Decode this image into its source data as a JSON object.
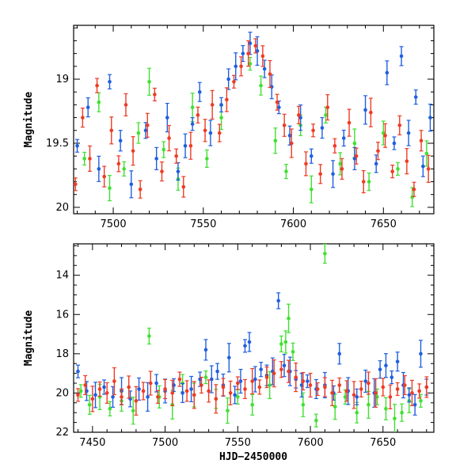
{
  "colors": {
    "blue": "#1f5fe0",
    "red": "#ee3b24",
    "green": "#3fe030",
    "frame": "#000000"
  },
  "chart_data": [
    {
      "type": "scatter",
      "title": "",
      "xlabel": "",
      "ylabel": "Magnitude",
      "xlim": [
        7478,
        7678
      ],
      "ylim": [
        20.05,
        18.58
      ],
      "y_inverted": true,
      "xticks": [
        7500,
        7550,
        7600,
        7650
      ],
      "yticks": [
        19,
        19.5,
        20
      ],
      "error_bars": true,
      "grid": false,
      "legend": "none",
      "series": [
        {
          "color": "#3fe030",
          "x": [
            7484,
            7492,
            7498,
            7506,
            7514,
            7520,
            7528,
            7536,
            7544,
            7552,
            7560,
            7576,
            7582,
            7590,
            7596,
            7604,
            7610,
            7618,
            7626,
            7634,
            7642,
            7650,
            7658,
            7666,
            7674
          ],
          "y": [
            19.62,
            19.18,
            19.85,
            19.7,
            19.42,
            19.02,
            19.55,
            19.78,
            19.22,
            19.62,
            19.3,
            18.88,
            19.05,
            19.48,
            19.72,
            19.36,
            19.86,
            19.28,
            19.66,
            19.5,
            19.8,
            19.42,
            19.7,
            19.92,
            19.58
          ]
        },
        {
          "color": "#1f5fe0",
          "x": [
            7480,
            7486,
            7492,
            7498,
            7504,
            7510,
            7518,
            7524,
            7530,
            7536,
            7540,
            7544,
            7548,
            7554,
            7560,
            7564,
            7568,
            7572,
            7576,
            7580,
            7584,
            7588,
            7592,
            7598,
            7604,
            7610,
            7616,
            7622,
            7628,
            7634,
            7640,
            7646,
            7652,
            7656,
            7660,
            7664,
            7668,
            7672,
            7676
          ],
          "y": [
            19.52,
            19.22,
            19.7,
            19.02,
            19.48,
            19.82,
            19.4,
            19.62,
            19.3,
            19.72,
            19.52,
            19.35,
            19.1,
            19.42,
            19.2,
            19.0,
            18.9,
            18.8,
            18.72,
            18.78,
            18.92,
            19.06,
            19.22,
            19.44,
            19.3,
            19.6,
            19.38,
            19.74,
            19.46,
            19.62,
            19.24,
            19.66,
            18.95,
            19.5,
            18.82,
            19.42,
            19.14,
            19.68,
            19.3
          ]
        },
        {
          "color": "#ee3b24",
          "x": [
            7479,
            7483,
            7487,
            7491,
            7495,
            7499,
            7503,
            7507,
            7511,
            7515,
            7519,
            7523,
            7527,
            7531,
            7535,
            7539,
            7543,
            7547,
            7551,
            7555,
            7559,
            7563,
            7567,
            7571,
            7575,
            7579,
            7583,
            7587,
            7591,
            7595,
            7599,
            7603,
            7607,
            7611,
            7615,
            7619,
            7623,
            7627,
            7631,
            7635,
            7639,
            7643,
            7647,
            7651,
            7655,
            7659,
            7663,
            7667,
            7671,
            7675
          ],
          "y": [
            19.82,
            19.3,
            19.62,
            19.05,
            19.76,
            19.4,
            19.66,
            19.2,
            19.56,
            19.86,
            19.36,
            19.12,
            19.72,
            19.46,
            19.6,
            19.84,
            19.52,
            19.28,
            19.4,
            19.2,
            19.42,
            19.16,
            19.02,
            18.9,
            18.8,
            18.74,
            18.82,
            18.96,
            19.18,
            19.36,
            19.5,
            19.28,
            19.66,
            19.4,
            19.74,
            19.22,
            19.52,
            19.7,
            19.34,
            19.6,
            19.8,
            19.26,
            19.56,
            19.44,
            19.72,
            19.36,
            19.64,
            19.86,
            19.48,
            19.7
          ]
        }
      ]
    },
    {
      "type": "scatter",
      "title": "",
      "xlabel": "HJD−2450000",
      "ylabel": "Magnitude",
      "xlim": [
        7437,
        7685
      ],
      "ylim": [
        22,
        12.4
      ],
      "y_inverted": true,
      "xticks": [
        7450,
        7500,
        7550,
        7600,
        7650
      ],
      "yticks": [
        14,
        16,
        18,
        20,
        22
      ],
      "error_bars": true,
      "grid": false,
      "legend": "none",
      "series": [
        {
          "color": "#3fe030",
          "x": [
            7442,
            7448,
            7455,
            7462,
            7470,
            7478,
            7489,
            7496,
            7505,
            7512,
            7520,
            7528,
            7535,
            7543,
            7550,
            7560,
            7572,
            7580,
            7583,
            7585,
            7588,
            7595,
            7604,
            7610,
            7617,
            7624,
            7632,
            7640,
            7646,
            7652,
            7658,
            7663,
            7668,
            7676
          ],
          "y": [
            19.9,
            20.6,
            20.2,
            20.8,
            20.4,
            20.9,
            17.1,
            20.2,
            20.6,
            19.5,
            20.1,
            19.2,
            20.3,
            20.9,
            20.2,
            20.6,
            19.6,
            17.5,
            17.4,
            16.2,
            17.9,
            20.6,
            21.4,
            12.9,
            20.7,
            20.2,
            21.0,
            20.6,
            20.2,
            20.8,
            21.3,
            21.0,
            20.4,
            20.4
          ]
        },
        {
          "color": "#1f5fe0",
          "x": [
            7440,
            7446,
            7452,
            7458,
            7464,
            7470,
            7476,
            7482,
            7488,
            7494,
            7500,
            7506,
            7512,
            7518,
            7524,
            7528,
            7532,
            7536,
            7540,
            7544,
            7548,
            7552,
            7555,
            7558,
            7562,
            7566,
            7570,
            7574,
            7578,
            7582,
            7586,
            7590,
            7594,
            7598,
            7604,
            7610,
            7616,
            7620,
            7626,
            7632,
            7638,
            7644,
            7648,
            7652,
            7656,
            7660,
            7664,
            7668,
            7672,
            7676,
            7680
          ],
          "y": [
            18.9,
            19.9,
            20.1,
            19.7,
            20.2,
            19.9,
            20.3,
            19.8,
            20.2,
            19.5,
            19.9,
            19.6,
            20.0,
            19.8,
            19.3,
            17.8,
            19.3,
            18.9,
            19.6,
            18.2,
            20.1,
            19.4,
            17.6,
            17.4,
            19.3,
            18.8,
            19.1,
            18.9,
            15.3,
            18.6,
            18.9,
            19.3,
            19.6,
            19.4,
            19.8,
            19.6,
            20.0,
            18.0,
            19.9,
            20.2,
            19.4,
            20.0,
            18.8,
            18.6,
            19.2,
            18.4,
            19.6,
            20.1,
            20.6,
            18.0,
            19.7
          ]
        },
        {
          "color": "#ee3b24",
          "x": [
            7440,
            7445,
            7450,
            7455,
            7460,
            7465,
            7470,
            7475,
            7480,
            7485,
            7490,
            7495,
            7500,
            7505,
            7510,
            7515,
            7520,
            7525,
            7530,
            7535,
            7540,
            7545,
            7550,
            7555,
            7560,
            7565,
            7570,
            7575,
            7580,
            7585,
            7590,
            7595,
            7600,
            7605,
            7610,
            7615,
            7620,
            7625,
            7630,
            7635,
            7640,
            7645,
            7650,
            7655,
            7660,
            7665,
            7670,
            7675,
            7680
          ],
          "y": [
            20.1,
            19.6,
            20.3,
            19.8,
            20.0,
            19.4,
            20.2,
            19.7,
            20.4,
            19.9,
            19.5,
            20.2,
            19.8,
            20.0,
            19.3,
            19.9,
            20.1,
            19.6,
            19.9,
            20.3,
            19.7,
            20.0,
            19.5,
            19.8,
            19.4,
            19.7,
            19.2,
            19.0,
            18.8,
            18.9,
            19.2,
            19.4,
            19.6,
            19.8,
            19.7,
            20.0,
            19.6,
            19.9,
            20.1,
            19.8,
            19.5,
            20.0,
            19.7,
            20.2,
            19.8,
            19.6,
            20.0,
            19.9,
            19.7
          ]
        }
      ]
    }
  ]
}
